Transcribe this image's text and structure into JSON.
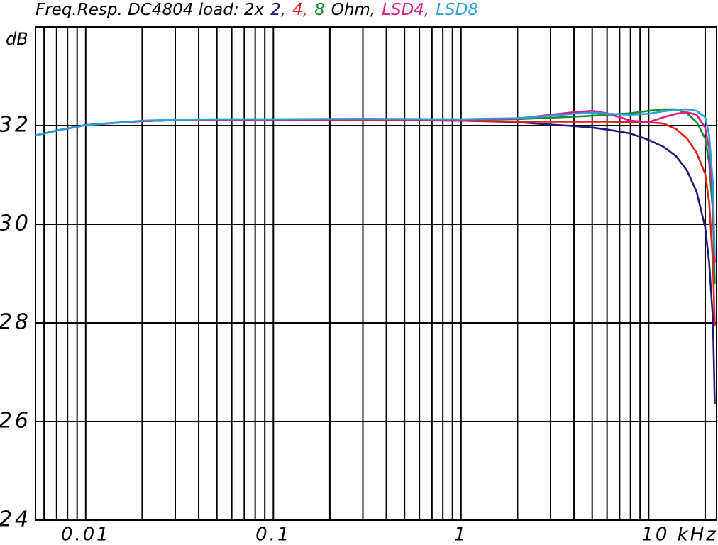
{
  "chart_data": {
    "type": "line",
    "title_segments": [
      {
        "text": "Freq.Resp. DC4804 load: 2x",
        "color": "#000000"
      },
      {
        "text": "2,",
        "color": "#1c1c78"
      },
      {
        "text": "4,",
        "color": "#e0201b"
      },
      {
        "text": "8",
        "color": "#1a8a3a"
      },
      {
        "text": "Ohm,",
        "color": "#000000"
      },
      {
        "text": "LSD4,",
        "color": "#e0198a"
      },
      {
        "text": "LSD8",
        "color": "#2aa0d8"
      }
    ],
    "y_label": "dB",
    "x_scale": "log",
    "x": [
      0.0054,
      0.007,
      0.01,
      0.015,
      0.02,
      0.03,
      0.05,
      0.1,
      0.3,
      1,
      2,
      3,
      4,
      5,
      6,
      8,
      10,
      12,
      14,
      16,
      18,
      20,
      21,
      22,
      22.5
    ],
    "series": [
      {
        "color": "#1c1c78",
        "values": [
          31.8,
          31.9,
          32.01,
          32.06,
          32.09,
          32.11,
          32.12,
          32.12,
          32.12,
          32.1,
          32.07,
          32.02,
          31.99,
          31.96,
          31.92,
          31.84,
          31.71,
          31.57,
          31.38,
          31.09,
          30.66,
          29.94,
          29.22,
          28.07,
          26.35
        ]
      },
      {
        "color": "#e0201b",
        "values": [
          31.8,
          31.9,
          32.01,
          32.06,
          32.09,
          32.11,
          32.12,
          32.12,
          32.12,
          32.1,
          32.08,
          32.08,
          32.08,
          32.08,
          32.08,
          32.07,
          32.07,
          32.04,
          31.93,
          31.74,
          31.45,
          31.02,
          30.45,
          29.22,
          27.93
        ]
      },
      {
        "color": "#1a8a3a",
        "values": [
          31.8,
          31.9,
          32.01,
          32.06,
          32.09,
          32.11,
          32.12,
          32.12,
          32.13,
          32.12,
          32.13,
          32.16,
          32.18,
          32.2,
          32.22,
          32.25,
          32.3,
          32.33,
          32.33,
          32.25,
          32.07,
          31.74,
          31.24,
          30.23,
          28.79
        ]
      },
      {
        "color": "#e0198a",
        "values": [
          31.8,
          31.9,
          32.01,
          32.06,
          32.09,
          32.11,
          32.12,
          32.12,
          32.13,
          32.12,
          32.14,
          32.22,
          32.27,
          32.3,
          32.25,
          32.1,
          32.07,
          32.17,
          32.24,
          32.27,
          32.22,
          31.96,
          31.53,
          30.52,
          29.22
        ]
      },
      {
        "color": "#2aa0d8",
        "values": [
          31.8,
          31.9,
          32.01,
          32.06,
          32.1,
          32.12,
          32.13,
          32.13,
          32.14,
          32.13,
          32.15,
          32.2,
          32.24,
          32.26,
          32.24,
          32.22,
          32.24,
          32.29,
          32.32,
          32.33,
          32.3,
          32.17,
          31.81,
          30.81,
          29.37
        ]
      }
    ],
    "xlim": [
      0.0054,
      23
    ],
    "ylim": [
      24,
      34
    ],
    "xticks": [
      0.01,
      0.1,
      1,
      {
        "value": 10,
        "label": "10 kHz"
      }
    ],
    "x_minor_ticks": [
      0.006,
      0.007,
      0.008,
      0.009,
      0.02,
      0.03,
      0.04,
      0.05,
      0.06,
      0.07,
      0.08,
      0.09,
      0.2,
      0.3,
      0.4,
      0.5,
      0.6,
      0.7,
      0.8,
      0.9,
      2,
      3,
      4,
      5,
      6,
      7,
      8,
      9,
      20
    ],
    "yticks": [
      24,
      26,
      28,
      30,
      32
    ],
    "grid": true
  }
}
